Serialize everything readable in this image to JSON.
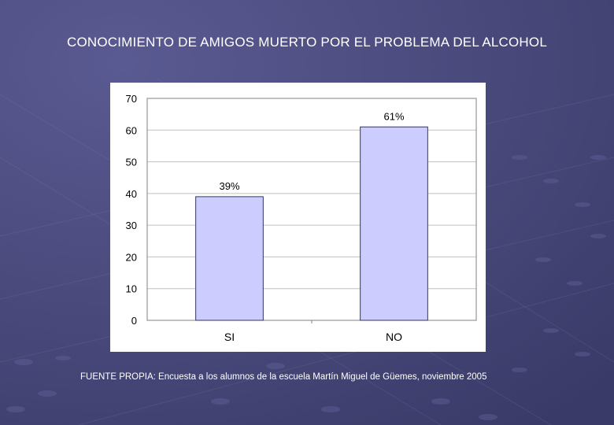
{
  "slide": {
    "title": "CONOCIMIENTO DE AMIGOS MUERTO POR EL PROBLEMA DEL ALCOHOL",
    "source": "FUENTE PROPIA: Encuesta a los alumnos de la escuela  Martín Miguel de Güemes, noviembre 2005"
  },
  "colors": {
    "background": "#4a4a7e",
    "bar_fill": "#ccccff",
    "bar_stroke": "#333366",
    "grid": "#c0c0c0",
    "plot_border": "#808080"
  },
  "chart_data": {
    "type": "bar",
    "categories": [
      "SI",
      "NO"
    ],
    "values": [
      39,
      61
    ],
    "data_labels": [
      "39%",
      "61%"
    ],
    "ylim": [
      0,
      70
    ],
    "yticks": [
      0,
      10,
      20,
      30,
      40,
      50,
      60,
      70
    ],
    "grid": true,
    "legend": "none"
  }
}
